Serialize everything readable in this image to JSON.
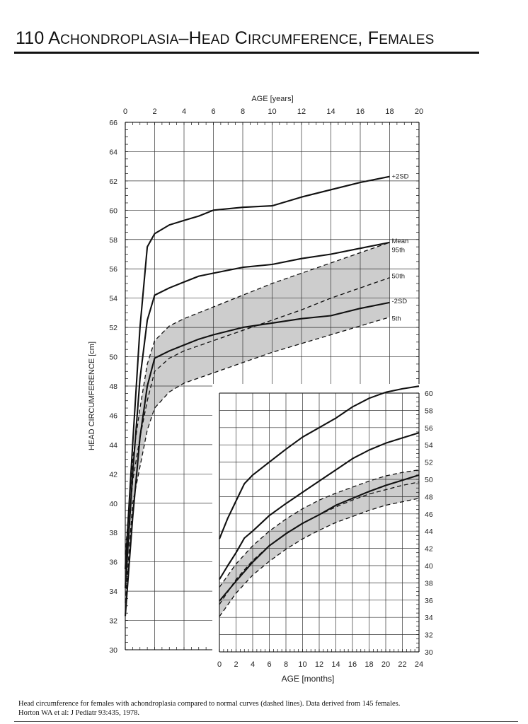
{
  "page": {
    "title": "110 Achondroplasia–Head Circumference, Females",
    "caption_line1": "Head circumference for females with achondroplasia compared to normal curves (dashed lines).  Data derived from 145 females.",
    "caption_line2": "Horton WA et al:  J Pediatr 93:435, 1978."
  },
  "chart_data": [
    {
      "type": "line",
      "panel": "main",
      "xlabel": "AGE [years]",
      "ylabel": "HEAD CIRCUMFERENCE  [cm]",
      "xlim": [
        0,
        20
      ],
      "ylim": [
        30,
        66
      ],
      "xticks": [
        "0",
        "2",
        "4",
        "6",
        "8",
        "10",
        "12",
        "14",
        "16",
        "18",
        "20"
      ],
      "yticks": [
        "30",
        "32",
        "34",
        "36",
        "38",
        "40",
        "42",
        "44",
        "46",
        "48",
        "50",
        "52",
        "54",
        "56",
        "58",
        "60",
        "62",
        "64",
        "66"
      ],
      "grid": true,
      "series": [
        {
          "name": "+2SD",
          "style": "solid",
          "x": [
            0,
            0.5,
            1,
            1.5,
            2,
            3,
            4,
            5,
            6,
            8,
            10,
            12,
            14,
            16,
            18
          ],
          "y": [
            35.5,
            44,
            52,
            57.5,
            58.4,
            59,
            59.3,
            59.6,
            60,
            60.2,
            60.3,
            60.9,
            61.4,
            61.9,
            62.3
          ]
        },
        {
          "name": "Mean",
          "style": "solid",
          "x": [
            0,
            0.5,
            1,
            1.5,
            2,
            3,
            4,
            5,
            6,
            8,
            10,
            12,
            14,
            16,
            18
          ],
          "y": [
            34.2,
            42,
            48.5,
            52.5,
            54.2,
            54.7,
            55.1,
            55.5,
            55.7,
            56.1,
            56.3,
            56.7,
            57,
            57.4,
            57.8
          ]
        },
        {
          "name": "-2SD",
          "style": "solid",
          "x": [
            0,
            0.5,
            1,
            1.5,
            2,
            3,
            4,
            5,
            6,
            8,
            10,
            12,
            14,
            16,
            18
          ],
          "y": [
            32.3,
            39,
            44.5,
            48,
            49.9,
            50.4,
            50.8,
            51.2,
            51.5,
            52,
            52.3,
            52.6,
            52.8,
            53.3,
            53.7
          ]
        },
        {
          "name": "95th",
          "style": "dashed",
          "x": [
            0,
            0.5,
            1,
            1.5,
            2,
            3,
            4,
            6,
            8,
            10,
            12,
            14,
            16,
            18
          ],
          "y": [
            36.5,
            43,
            46.5,
            49.5,
            51.1,
            52.1,
            52.6,
            53.4,
            54.2,
            55,
            55.7,
            56.4,
            57.1,
            57.8
          ]
        },
        {
          "name": "50th",
          "style": "dashed",
          "x": [
            0,
            0.5,
            1,
            1.5,
            2,
            3,
            4,
            6,
            8,
            10,
            12,
            14,
            16,
            18
          ],
          "y": [
            34.5,
            41.5,
            44.5,
            47,
            49,
            49.9,
            50.4,
            51.1,
            51.8,
            52.5,
            53.2,
            54,
            54.7,
            55.4
          ]
        },
        {
          "name": "5th",
          "style": "dashed",
          "x": [
            0,
            0.5,
            1,
            1.5,
            2,
            3,
            4,
            6,
            8,
            10,
            12,
            14,
            16,
            18
          ],
          "y": [
            33.2,
            40,
            42.5,
            45,
            46.5,
            47.6,
            48.2,
            48.9,
            49.6,
            50.3,
            50.9,
            51.5,
            52.1,
            52.7
          ]
        }
      ],
      "shaded_band": {
        "between": [
          "5th",
          "95th"
        ],
        "color": "#c8c8c8"
      }
    },
    {
      "type": "line",
      "panel": "inset",
      "xlabel": "AGE [months]",
      "xlim": [
        0,
        24
      ],
      "ylim": [
        30,
        60
      ],
      "xticks": [
        "0",
        "2",
        "4",
        "6",
        "8",
        "10",
        "12",
        "14",
        "16",
        "18",
        "20",
        "22",
        "24"
      ],
      "yticks": [
        "30",
        "32",
        "34",
        "36",
        "38",
        "40",
        "42",
        "44",
        "46",
        "48",
        "50",
        "52",
        "54",
        "56",
        "58",
        "60"
      ],
      "grid": true,
      "series": [
        {
          "name": "+2SD",
          "style": "solid",
          "x": [
            0,
            1,
            2,
            3,
            4,
            6,
            8,
            10,
            12,
            14,
            16,
            18,
            20,
            22,
            24
          ],
          "y": [
            43.1,
            45.5,
            47.5,
            49.5,
            50.5,
            52,
            53.5,
            54.9,
            56,
            57.1,
            58.4,
            59.4,
            60.1,
            60.5,
            60.8
          ]
        },
        {
          "name": "Mean",
          "style": "solid",
          "x": [
            0,
            1,
            2,
            3,
            4,
            6,
            8,
            10,
            12,
            14,
            16,
            18,
            20,
            22,
            24
          ],
          "y": [
            38.4,
            40,
            41.5,
            43.2,
            44,
            45.8,
            47.2,
            48.5,
            49.8,
            51.1,
            52.4,
            53.4,
            54.2,
            54.8,
            55.4
          ]
        },
        {
          "name": "-2SD",
          "style": "solid",
          "x": [
            0,
            2,
            4,
            6,
            8,
            10,
            12,
            14,
            16,
            18,
            20,
            22,
            24
          ],
          "y": [
            35.9,
            38.2,
            40.4,
            42.3,
            43.7,
            44.9,
            45.9,
            47,
            47.8,
            48.6,
            49.3,
            49.9,
            50.5
          ]
        },
        {
          "name": "95th",
          "style": "dashed",
          "x": [
            0,
            2,
            4,
            6,
            8,
            10,
            12,
            14,
            16,
            18,
            20,
            22,
            24
          ],
          "y": [
            37.5,
            40.2,
            42.3,
            44,
            45.4,
            46.6,
            47.6,
            48.4,
            49.1,
            49.8,
            50.4,
            50.8,
            51.1
          ]
        },
        {
          "name": "50th",
          "style": "dashed",
          "x": [
            0,
            2,
            4,
            6,
            8,
            10,
            12,
            14,
            16,
            18,
            20,
            22,
            24
          ],
          "y": [
            35.5,
            38.4,
            40.6,
            42.3,
            43.7,
            44.9,
            45.9,
            46.8,
            47.6,
            48.3,
            48.8,
            49.3,
            49.7
          ]
        },
        {
          "name": "5th",
          "style": "dashed",
          "x": [
            0,
            2,
            4,
            6,
            8,
            10,
            12,
            14,
            16,
            18,
            20,
            22,
            24
          ],
          "y": [
            34.1,
            36.8,
            38.9,
            40.5,
            41.9,
            43.1,
            44.1,
            45,
            45.7,
            46.4,
            47,
            47.4,
            47.8
          ]
        }
      ],
      "shaded_band": {
        "between": [
          "5th",
          "95th"
        ],
        "color": "#c8c8c8"
      }
    }
  ],
  "curve_labels": [
    {
      "text": "+2SD",
      "panel": "main",
      "x": 18,
      "y": 62.3
    },
    {
      "text": "Mean",
      "panel": "main",
      "x": 18,
      "y": 57.9
    },
    {
      "text": "95th",
      "panel": "main",
      "x": 18,
      "y": 57.3
    },
    {
      "text": "50th",
      "panel": "main",
      "x": 18,
      "y": 55.5
    },
    {
      "text": "-2SD",
      "panel": "main",
      "x": 18,
      "y": 53.8
    },
    {
      "text": "5th",
      "panel": "main",
      "x": 18,
      "y": 52.6
    }
  ],
  "colors": {
    "ink": "#111111",
    "grid": "#333333",
    "band": "#c8c8c8",
    "band_edge": "#b0b0b0"
  }
}
